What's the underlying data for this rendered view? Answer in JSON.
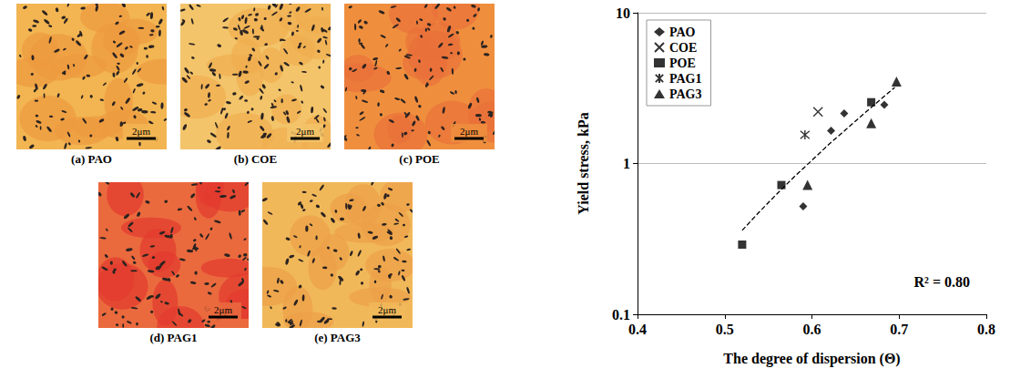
{
  "chart_data": {
    "type": "scatter",
    "x_label": "The degree of dispersion (Θ)",
    "y_label": "Yield stress, kPa",
    "xlim": [
      0.4,
      0.8
    ],
    "xticks": [
      0.4,
      0.5,
      0.6,
      0.7,
      0.8
    ],
    "ylim": [
      0.1,
      10
    ],
    "yticks": [
      0.1,
      1,
      10
    ],
    "log": "y",
    "grid": true,
    "legend": "top-left",
    "annotation": "R² = 0.80",
    "series": [
      {
        "name": "PAO",
        "marker": "diamond",
        "color": "#000000",
        "x": [
          0.59,
          0.622,
          0.637,
          0.683
        ],
        "values": [
          0.52,
          1.65,
          2.15,
          2.45
        ]
      },
      {
        "name": "COE",
        "marker": "x",
        "color": "#000000",
        "x": [
          0.607
        ],
        "values": [
          2.2
        ]
      },
      {
        "name": "POE",
        "marker": "square",
        "color": "#000000",
        "x": [
          0.52,
          0.565,
          0.668
        ],
        "values": [
          0.29,
          0.72,
          2.55
        ]
      },
      {
        "name": "PAG1",
        "marker": "asterisk",
        "color": "#000000",
        "x": [
          0.592
        ],
        "values": [
          1.55
        ]
      },
      {
        "name": "PAG3",
        "marker": "triangle",
        "color": "#000000",
        "x": [
          0.595,
          0.668,
          0.697
        ],
        "values": [
          0.72,
          1.85,
          3.5
        ]
      },
      {
        "type": "line",
        "line_style": "dashed",
        "color": "#000000",
        "x": [
          0.52,
          0.54,
          0.56,
          0.58,
          0.6,
          0.62,
          0.64,
          0.66,
          0.68,
          0.695
        ],
        "values": [
          0.36,
          0.48,
          0.63,
          0.82,
          1.05,
          1.35,
          1.7,
          2.15,
          2.7,
          3.2
        ]
      }
    ]
  },
  "images": [
    {
      "label": "(a) PAO",
      "scale_bar": "2μm"
    },
    {
      "label": "(b) COE",
      "scale_bar": "2μm"
    },
    {
      "label": "(c) POE",
      "scale_bar": "2μm"
    },
    {
      "label": "(d) PAG1",
      "scale_bar": "2μm"
    },
    {
      "label": "(e) PAG3",
      "scale_bar": "2μm"
    }
  ]
}
